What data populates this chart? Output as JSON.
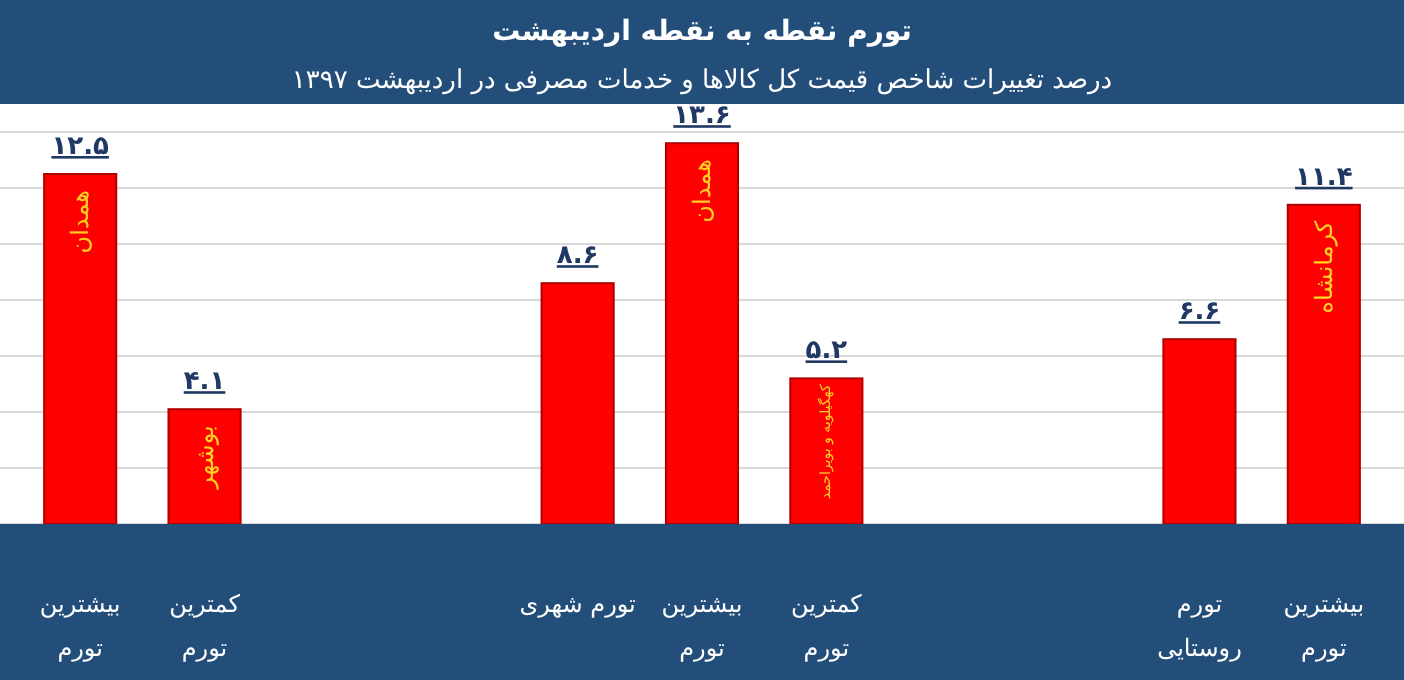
{
  "chart_data": {
    "type": "bar",
    "title": "تورم نقطه به نقطه اردیبهشت",
    "subtitle": "درصد تغییرات شاخص قیمت کل کالاها و خدمات مصرفی در اردیبهشت ۱۳۹۷",
    "categories": [
      "بیشترین تورم",
      "کمترین تورم",
      null,
      null,
      "تورم شهری",
      "بیشترین تورم",
      "کمترین تورم",
      null,
      null,
      "تورم روستایی",
      "بیشترین تورم"
    ],
    "values": [
      12.5,
      4.1,
      null,
      null,
      8.6,
      13.6,
      5.2,
      null,
      null,
      6.6,
      11.4
    ],
    "value_labels": [
      "۱۲.۵",
      "۴.۱",
      null,
      null,
      "۸.۶",
      "۱۳.۶",
      "۵.۲",
      null,
      null,
      "۶.۶",
      "۱۱.۴"
    ],
    "color": "#ff0000",
    "ylim": [
      0,
      14
    ],
    "yticks": [
      {
        "value": 0,
        "label": null
      },
      {
        "value": 2,
        "label": null
      },
      {
        "value": 4,
        "label": null
      },
      {
        "value": 6,
        "label": null
      },
      {
        "value": 8,
        "label": null
      },
      {
        "value": 10,
        "label": null
      },
      {
        "value": 12,
        "label": null
      },
      {
        "value": 14,
        "label": null
      }
    ],
    "grid": "y",
    "tick_labels": "x",
    "annotations": [
      "همدان",
      "بوشهر",
      "همدان",
      "کهگیلویه و بویراحمد",
      "کرمانشاه"
    ]
  }
}
